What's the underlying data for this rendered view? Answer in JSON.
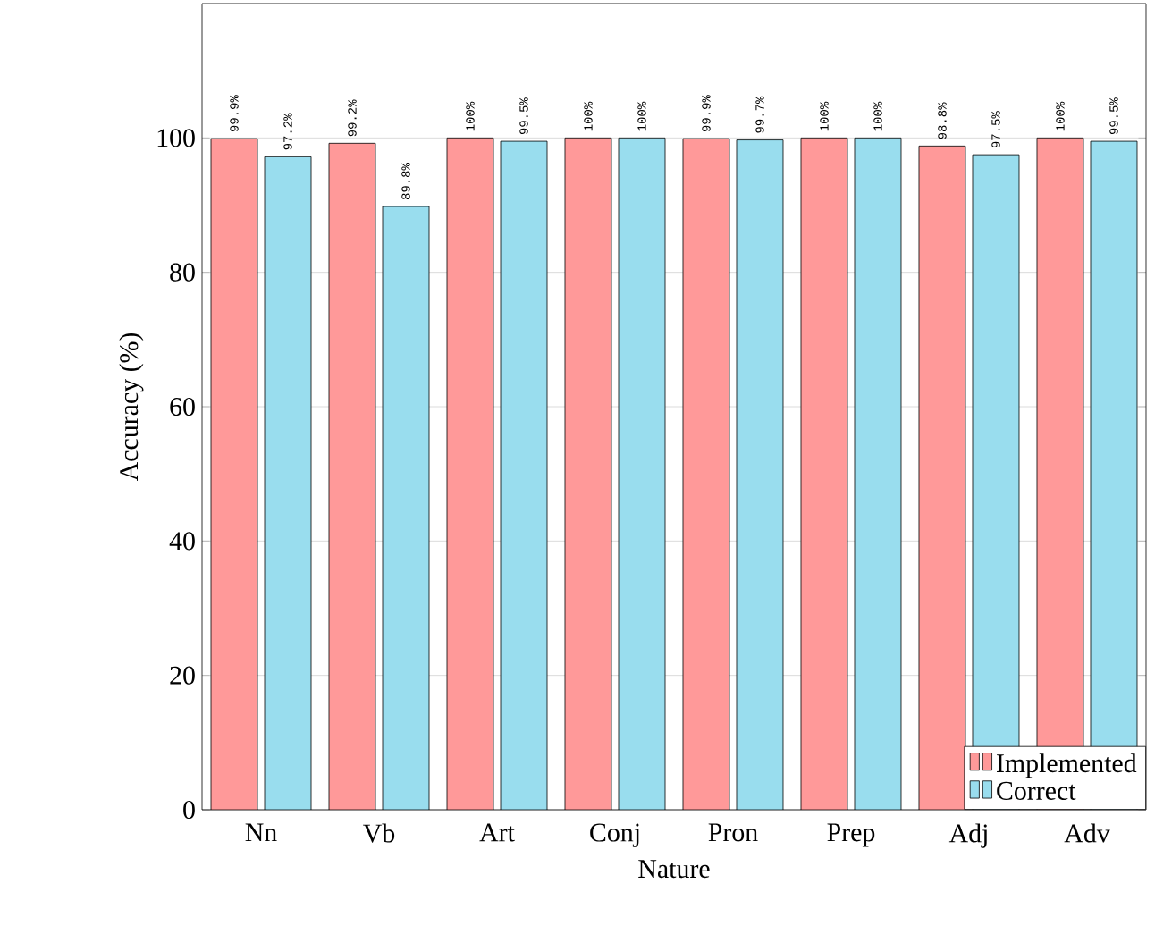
{
  "chart_data": {
    "type": "bar",
    "xlabel": "Nature",
    "ylabel": "Accuracy (%)",
    "categories": [
      "Nn",
      "Vb",
      "Art",
      "Conj",
      "Pron",
      "Prep",
      "Adj",
      "Adv"
    ],
    "series": [
      {
        "name": "Implemented",
        "color": "#ff9999",
        "values": [
          99.9,
          99.2,
          100,
          100,
          99.9,
          100,
          98.8,
          100
        ],
        "value_labels": [
          "99.9%",
          "99.2%",
          "100%",
          "100%",
          "99.9%",
          "100%",
          "98.8%",
          "100%"
        ]
      },
      {
        "name": "Correct",
        "color": "#99ddee",
        "values": [
          97.2,
          89.8,
          99.5,
          100,
          99.7,
          100,
          97.5,
          99.5
        ],
        "value_labels": [
          "97.2%",
          "89.8%",
          "99.5%",
          "100%",
          "99.7%",
          "100%",
          "97.5%",
          "99.5%"
        ]
      }
    ],
    "ylim": [
      0,
      120
    ],
    "yticks": [
      0,
      20,
      40,
      60,
      80,
      100
    ],
    "grid": "y",
    "legend": "bottom right"
  }
}
